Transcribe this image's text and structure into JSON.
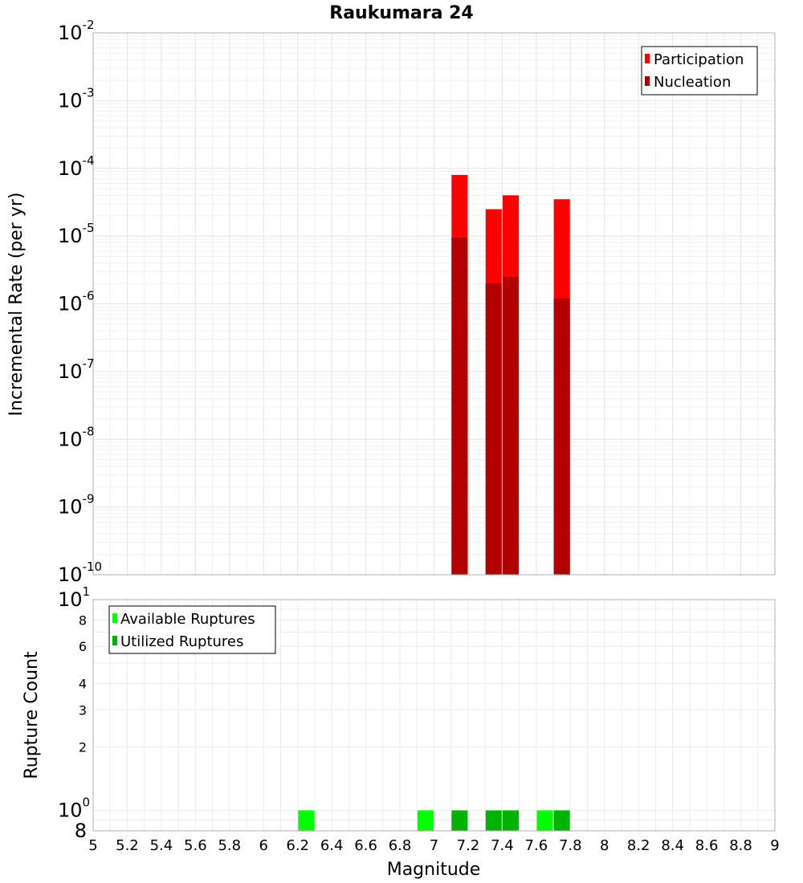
{
  "chart_data": [
    {
      "type": "bar",
      "title": "Raukumara 24",
      "xlabel": "",
      "ylabel": "Incremental Rate (per yr)",
      "yscale": "log",
      "ylim": [
        1e-10,
        0.01
      ],
      "xlim": [
        5,
        9
      ],
      "y_ticks": [
        {
          "base": "10",
          "exp": "-10"
        },
        {
          "base": "10",
          "exp": "-9"
        },
        {
          "base": "10",
          "exp": "-8"
        },
        {
          "base": "10",
          "exp": "-7"
        },
        {
          "base": "10",
          "exp": "-6"
        },
        {
          "base": "10",
          "exp": "-5"
        },
        {
          "base": "10",
          "exp": "-4"
        },
        {
          "base": "10",
          "exp": "-3"
        },
        {
          "base": "10",
          "exp": "-2"
        }
      ],
      "legend_position": "top-right",
      "grid": true,
      "series": [
        {
          "name": "Participation",
          "color": "#ff0000",
          "points": [
            {
              "x": 7.15,
              "y": 8e-05
            },
            {
              "x": 7.35,
              "y": 2.5e-05
            },
            {
              "x": 7.45,
              "y": 4e-05
            },
            {
              "x": 7.75,
              "y": 3.5e-05
            }
          ]
        },
        {
          "name": "Nucleation",
          "color": "#b30000",
          "points": [
            {
              "x": 7.15,
              "y": 9.5e-06
            },
            {
              "x": 7.35,
              "y": 2e-06
            },
            {
              "x": 7.45,
              "y": 2.5e-06
            },
            {
              "x": 7.75,
              "y": 1.2e-06
            }
          ]
        }
      ]
    },
    {
      "type": "bar",
      "xlabel": "Magnitude",
      "ylabel": "Rupture Count",
      "yscale": "log",
      "ylim": [
        0.8,
        10
      ],
      "xlim": [
        5,
        9
      ],
      "x_ticks": [
        "5",
        "5.2",
        "5.4",
        "5.6",
        "5.8",
        "6",
        "6.2",
        "6.4",
        "6.6",
        "6.8",
        "7",
        "7.2",
        "7.4",
        "7.6",
        "7.8",
        "8",
        "8.2",
        "8.4",
        "8.6",
        "8.8",
        "9"
      ],
      "y_ticks_minor": [
        "8",
        "6",
        "4",
        "3",
        "2"
      ],
      "y_ticks_major": [
        {
          "base": "10",
          "exp": "1"
        },
        {
          "base": "10",
          "exp": "0"
        }
      ],
      "y_bottom_label": "8",
      "legend_position": "top-left",
      "grid": true,
      "series": [
        {
          "name": "Available Ruptures",
          "color": "#00ff00",
          "points": [
            {
              "x": 6.25,
              "y": 1
            },
            {
              "x": 6.95,
              "y": 1
            },
            {
              "x": 7.65,
              "y": 1
            }
          ]
        },
        {
          "name": "Utilized Ruptures",
          "color": "#00b300",
          "points": [
            {
              "x": 7.15,
              "y": 1
            },
            {
              "x": 7.35,
              "y": 1
            },
            {
              "x": 7.45,
              "y": 1
            },
            {
              "x": 7.75,
              "y": 1
            }
          ]
        }
      ]
    }
  ]
}
